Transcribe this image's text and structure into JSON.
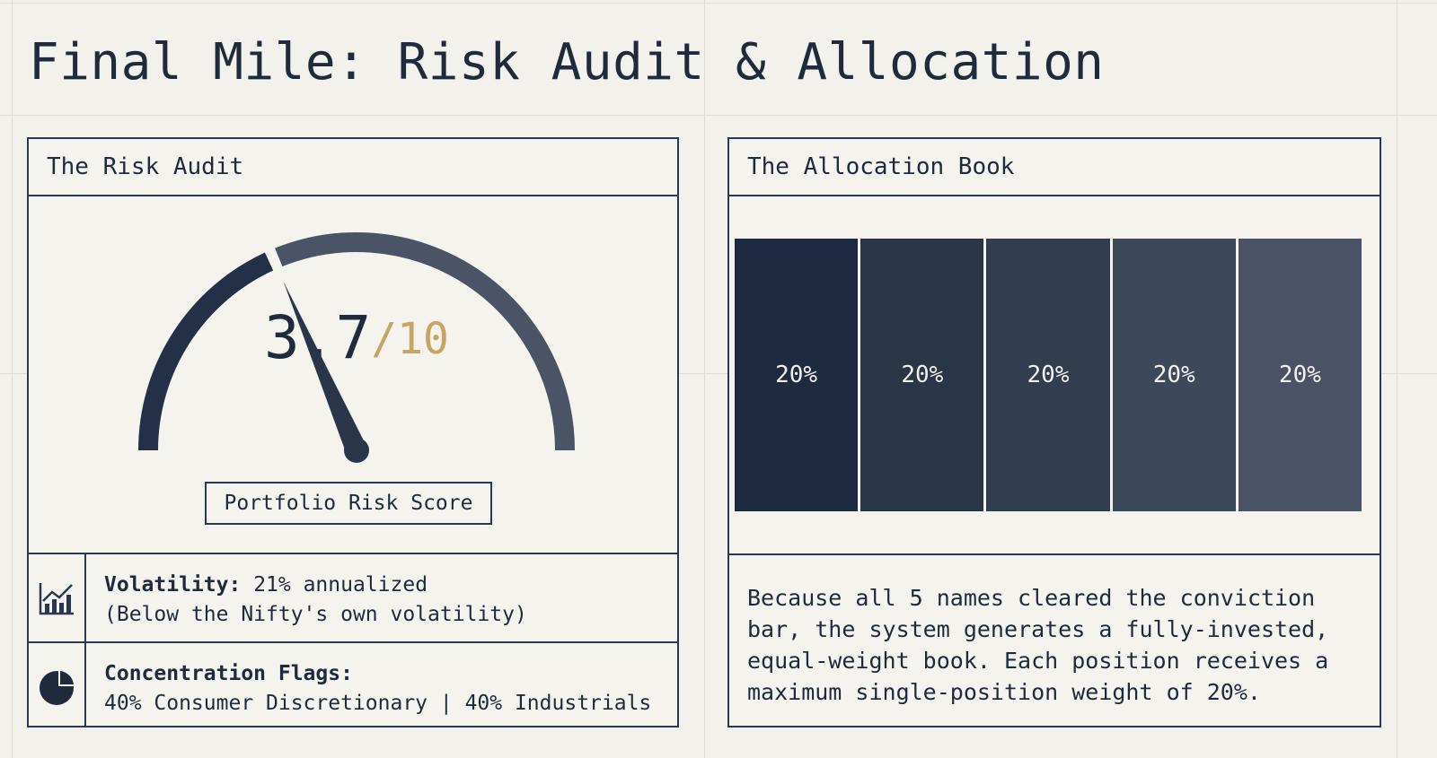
{
  "header": {
    "title": "Final Mile: Risk Audit & Allocation"
  },
  "risk_audit": {
    "title": "The Risk Audit",
    "score": {
      "value": 3.7,
      "max": {
        "value": 10,
        "label": "/10"
      }
    },
    "score_caption": "Portfolio Risk Score",
    "volatility": {
      "label": "Volatility:",
      "value": "21% annualized",
      "note": "(Below the Nifty's own volatility)"
    },
    "concentration": {
      "label": "Concentration Flags:",
      "value": "40% Consumer Discretionary | 40% Industrials"
    }
  },
  "allocation": {
    "title": "The Allocation Book",
    "values": [
      20,
      20,
      20,
      20,
      20
    ],
    "value_labels": [
      "20%",
      "20%",
      "20%",
      "20%",
      "20%"
    ],
    "colors": [
      "#1e2a3f",
      "#2a3548",
      "#333d50",
      "#3e485b",
      "#4a5366"
    ],
    "description": "Because all 5 names cleared the conviction bar, the system generates a fully-invested, equal-weight book. Each position receives a maximum single-position weight of 20%."
  }
}
